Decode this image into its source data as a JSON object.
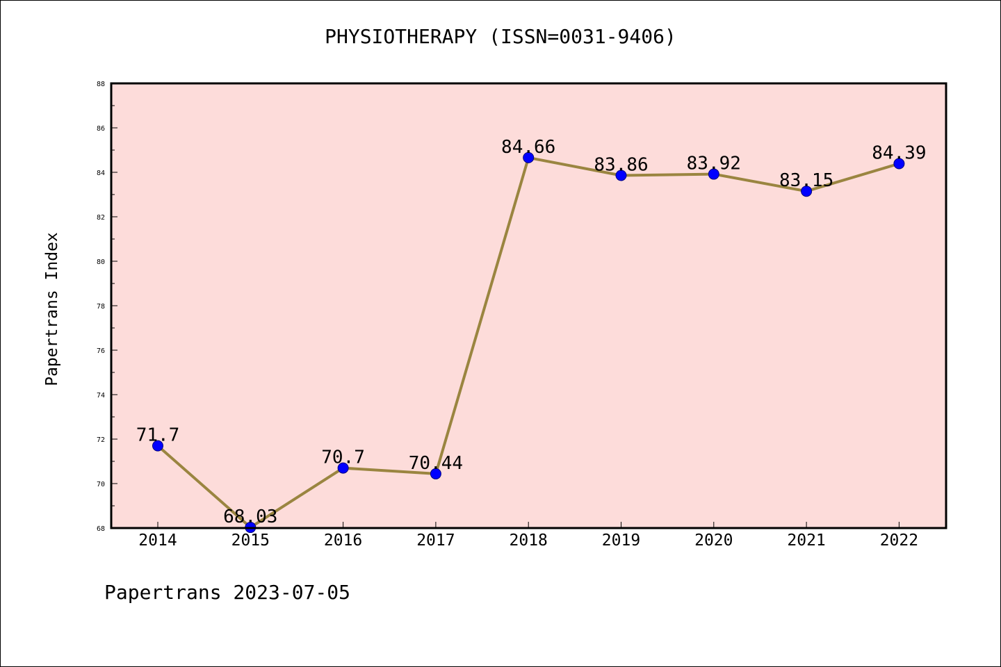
{
  "chart_data": {
    "type": "line",
    "title": "PHYSIOTHERAPY (ISSN=0031-9406)",
    "ylabel": "Papertrans Index",
    "xlabel": "",
    "categories": [
      "2014",
      "2015",
      "2016",
      "2017",
      "2018",
      "2019",
      "2020",
      "2021",
      "2022"
    ],
    "series": [
      {
        "values": [
          71.7,
          68.03,
          70.7,
          70.44,
          84.66,
          83.86,
          83.92,
          83.15,
          84.39
        ],
        "labels": [
          "71.7",
          "68.03",
          "70.7",
          "70.44",
          "84.66",
          "83.86",
          "83.92",
          "83.15",
          "84.39"
        ]
      }
    ],
    "ylim": [
      68,
      88
    ],
    "yticks": [
      68,
      70,
      72,
      74,
      76,
      78,
      80,
      82,
      84,
      86,
      88
    ],
    "grid": false,
    "legend": "none",
    "colors": {
      "plot_background": "#fddcda",
      "line": "#9a8540",
      "marker": "#0000ff",
      "marker_edge": "#000080"
    }
  },
  "footer": "Papertrans 2023-07-05"
}
